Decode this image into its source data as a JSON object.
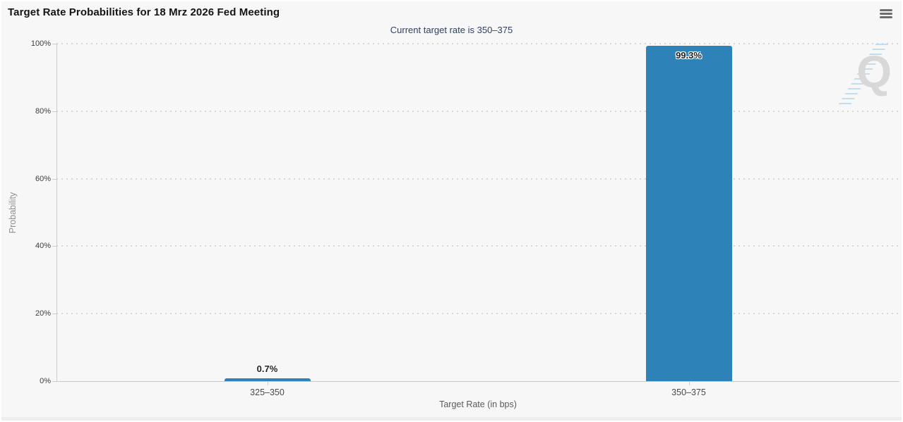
{
  "header": {
    "title": "Target Rate Probabilities for 18 Mrz 2026 Fed Meeting",
    "menu_icon": "hamburger-icon"
  },
  "subtitle": {
    "text": "Current target rate is 350–375"
  },
  "watermark": {
    "letter": "Q"
  },
  "chart_data": {
    "type": "bar",
    "title": "Target Rate Probabilities for 18 Mrz 2026 Fed Meeting",
    "subtitle": "Current target rate is 350–375",
    "categories": [
      "325–350",
      "350–375"
    ],
    "values": [
      0.7,
      99.3
    ],
    "value_labels": [
      "0.7%",
      "99.3%"
    ],
    "xlabel": "Target Rate (in bps)",
    "ylabel": "Probability",
    "ylim": [
      0,
      100
    ],
    "yticks": [
      0,
      20,
      40,
      60,
      80,
      100
    ],
    "ytick_labels": [
      "0%",
      "20%",
      "40%",
      "60%",
      "80%",
      "100%"
    ],
    "bar_color": "#2d82b8",
    "grid": "dotted-horizontal",
    "legend": "none"
  }
}
